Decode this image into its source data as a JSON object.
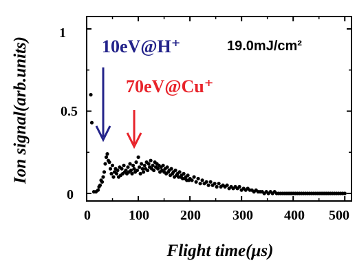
{
  "chart_data": {
    "type": "scatter",
    "xlabel": "Flight time(μs)",
    "ylabel": "Ion signal(arb.units)",
    "xlim": [
      0,
      510
    ],
    "ylim": [
      0,
      1
    ],
    "xticks": [
      "0",
      "100",
      "200",
      "300",
      "400",
      "500"
    ],
    "yticks": [
      "0",
      "0.5",
      "1"
    ],
    "grid": false,
    "marker_color": "#000000",
    "annotations": {
      "fluence": "19.0mJ/cm²",
      "h_label": "10eV@H⁺",
      "h_color": "#23238a",
      "h_x": 40,
      "cu_label": "70eV@Cu⁺",
      "cu_color": "#e8232a",
      "cu_x": 100
    },
    "series": [
      {
        "points": [
          [
            8,
            0.6
          ],
          [
            10,
            0.43
          ],
          [
            14,
            0.01
          ],
          [
            18,
            0.01
          ],
          [
            22,
            0.02
          ],
          [
            24,
            0.04
          ],
          [
            26,
            0.05
          ],
          [
            28,
            0.08
          ],
          [
            30,
            0.07
          ],
          [
            32,
            0.1
          ],
          [
            34,
            0.13
          ],
          [
            36,
            0.18
          ],
          [
            38,
            0.22
          ],
          [
            40,
            0.24
          ],
          [
            42,
            0.2
          ],
          [
            44,
            0.19
          ],
          [
            46,
            0.15
          ],
          [
            48,
            0.12
          ],
          [
            50,
            0.17
          ],
          [
            52,
            0.1
          ],
          [
            54,
            0.13
          ],
          [
            56,
            0.15
          ],
          [
            58,
            0.12
          ],
          [
            60,
            0.14
          ],
          [
            62,
            0.1
          ],
          [
            64,
            0.16
          ],
          [
            66,
            0.11
          ],
          [
            68,
            0.15
          ],
          [
            70,
            0.12
          ],
          [
            72,
            0.17
          ],
          [
            74,
            0.13
          ],
          [
            76,
            0.14
          ],
          [
            78,
            0.12
          ],
          [
            80,
            0.16
          ],
          [
            82,
            0.13
          ],
          [
            84,
            0.18
          ],
          [
            86,
            0.14
          ],
          [
            88,
            0.12
          ],
          [
            90,
            0.17
          ],
          [
            92,
            0.15
          ],
          [
            94,
            0.13
          ],
          [
            96,
            0.19
          ],
          [
            98,
            0.14
          ],
          [
            100,
            0.22
          ],
          [
            102,
            0.16
          ],
          [
            104,
            0.12
          ],
          [
            106,
            0.18
          ],
          [
            108,
            0.15
          ],
          [
            110,
            0.13
          ],
          [
            112,
            0.17
          ],
          [
            114,
            0.15
          ],
          [
            116,
            0.19
          ],
          [
            118,
            0.14
          ],
          [
            120,
            0.18
          ],
          [
            122,
            0.16
          ],
          [
            124,
            0.2
          ],
          [
            126,
            0.15
          ],
          [
            128,
            0.17
          ],
          [
            130,
            0.14
          ],
          [
            132,
            0.19
          ],
          [
            134,
            0.16
          ],
          [
            136,
            0.18
          ],
          [
            138,
            0.15
          ],
          [
            140,
            0.17
          ],
          [
            142,
            0.13
          ],
          [
            144,
            0.16
          ],
          [
            146,
            0.14
          ],
          [
            148,
            0.17
          ],
          [
            150,
            0.13
          ],
          [
            152,
            0.15
          ],
          [
            154,
            0.12
          ],
          [
            156,
            0.16
          ],
          [
            158,
            0.13
          ],
          [
            160,
            0.14
          ],
          [
            162,
            0.11
          ],
          [
            164,
            0.15
          ],
          [
            166,
            0.12
          ],
          [
            168,
            0.13
          ],
          [
            170,
            0.1
          ],
          [
            172,
            0.14
          ],
          [
            174,
            0.11
          ],
          [
            176,
            0.12
          ],
          [
            178,
            0.1
          ],
          [
            180,
            0.13
          ],
          [
            182,
            0.1
          ],
          [
            184,
            0.11
          ],
          [
            186,
            0.09
          ],
          [
            188,
            0.12
          ],
          [
            190,
            0.09
          ],
          [
            192,
            0.1
          ],
          [
            194,
            0.08
          ],
          [
            196,
            0.11
          ],
          [
            198,
            0.08
          ],
          [
            200,
            0.09
          ],
          [
            204,
            0.08
          ],
          [
            208,
            0.1
          ],
          [
            212,
            0.07
          ],
          [
            216,
            0.09
          ],
          [
            220,
            0.06
          ],
          [
            224,
            0.08
          ],
          [
            228,
            0.06
          ],
          [
            232,
            0.07
          ],
          [
            236,
            0.05
          ],
          [
            240,
            0.07
          ],
          [
            244,
            0.05
          ],
          [
            248,
            0.06
          ],
          [
            252,
            0.04
          ],
          [
            256,
            0.06
          ],
          [
            260,
            0.04
          ],
          [
            264,
            0.05
          ],
          [
            268,
            0.04
          ],
          [
            272,
            0.05
          ],
          [
            276,
            0.03
          ],
          [
            280,
            0.04
          ],
          [
            284,
            0.03
          ],
          [
            288,
            0.04
          ],
          [
            292,
            0.03
          ],
          [
            296,
            0.04
          ],
          [
            300,
            0.02
          ],
          [
            304,
            0.03
          ],
          [
            308,
            0.02
          ],
          [
            312,
            0.03
          ],
          [
            316,
            0.02
          ],
          [
            320,
            0.02
          ],
          [
            324,
            0.01
          ],
          [
            328,
            0.02
          ],
          [
            332,
            0.01
          ],
          [
            336,
            0.01
          ],
          [
            340,
            0.01
          ],
          [
            344,
            0.0
          ],
          [
            348,
            0.01
          ],
          [
            352,
            0.0
          ],
          [
            356,
            0.01
          ],
          [
            360,
            0.0
          ],
          [
            364,
            0.01
          ],
          [
            368,
            0.0
          ],
          [
            372,
            0.0
          ],
          [
            376,
            0.0
          ],
          [
            380,
            0.0
          ],
          [
            384,
            0.0
          ],
          [
            388,
            0.0
          ],
          [
            392,
            0.0
          ],
          [
            396,
            0.0
          ],
          [
            400,
            0.0
          ],
          [
            404,
            0.0
          ],
          [
            408,
            0.0
          ],
          [
            412,
            0.0
          ],
          [
            416,
            0.0
          ],
          [
            420,
            0.0
          ],
          [
            424,
            0.0
          ],
          [
            428,
            0.0
          ],
          [
            432,
            0.0
          ],
          [
            436,
            0.0
          ],
          [
            440,
            0.0
          ],
          [
            444,
            0.0
          ],
          [
            448,
            0.0
          ],
          [
            452,
            0.0
          ],
          [
            456,
            0.0
          ],
          [
            460,
            0.0
          ],
          [
            464,
            0.0
          ],
          [
            468,
            0.0
          ],
          [
            472,
            0.0
          ],
          [
            476,
            0.0
          ],
          [
            480,
            0.0
          ],
          [
            484,
            0.0
          ],
          [
            488,
            0.0
          ],
          [
            492,
            0.0
          ],
          [
            496,
            0.0
          ],
          [
            500,
            0.0
          ]
        ]
      }
    ]
  }
}
